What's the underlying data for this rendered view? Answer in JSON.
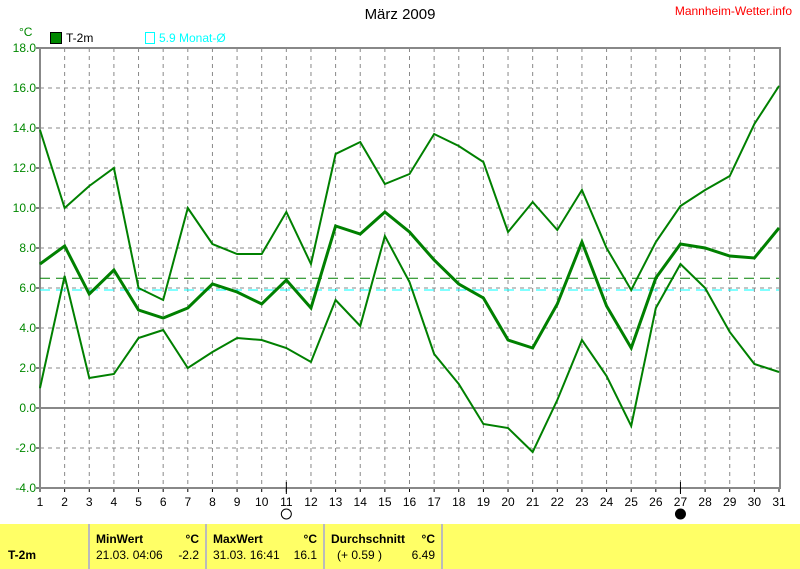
{
  "title": "März 2009",
  "brand": "Mannheim-Wetter.info",
  "unit": "°C",
  "legend": {
    "series": "T-2m",
    "reference": "5.9 Monat-Ø"
  },
  "colors": {
    "series": "#008000",
    "reference": "#00ffff",
    "average": "#008000",
    "grid": "#808080",
    "table": "#ffff66"
  },
  "moon_phases": [
    {
      "day": 11,
      "phase": "full-moon-icon"
    },
    {
      "day": 27,
      "phase": "new-moon-icon"
    }
  ],
  "chart_data": {
    "type": "line",
    "title": "März 2009",
    "ylabel": "°C",
    "ylim": [
      -4,
      18
    ],
    "yticks": [
      "-4.0",
      "-2.0",
      "0.0",
      "2.0",
      "4.0",
      "6.0",
      "8.0",
      "10.0",
      "12.0",
      "14.0",
      "16.0",
      "18.0"
    ],
    "x": [
      1,
      2,
      3,
      4,
      5,
      6,
      7,
      8,
      9,
      10,
      11,
      12,
      13,
      14,
      15,
      16,
      17,
      18,
      19,
      20,
      21,
      22,
      23,
      24,
      25,
      26,
      27,
      28,
      29,
      30,
      31
    ],
    "grid": true,
    "series": [
      {
        "role": "max",
        "values": [
          13.9,
          10.0,
          11.1,
          12.0,
          6.0,
          5.4,
          10.0,
          8.2,
          7.7,
          7.7,
          9.8,
          7.2,
          12.7,
          13.3,
          11.2,
          11.7,
          13.7,
          13.1,
          12.3,
          8.8,
          10.3,
          8.9,
          10.9,
          8.0,
          5.9,
          8.3,
          10.1,
          10.9,
          11.6,
          14.2,
          16.1
        ]
      },
      {
        "role": "mean",
        "values": [
          7.2,
          8.1,
          5.7,
          6.9,
          4.9,
          4.5,
          5.0,
          6.2,
          5.8,
          5.2,
          6.4,
          5.0,
          9.1,
          8.7,
          9.8,
          8.8,
          7.4,
          6.2,
          5.5,
          3.4,
          3.0,
          5.2,
          8.3,
          5.1,
          3.0,
          6.5,
          8.2,
          8.0,
          7.6,
          7.5,
          9.0
        ]
      },
      {
        "role": "min",
        "values": [
          1.0,
          6.6,
          1.5,
          1.7,
          3.5,
          3.9,
          2.0,
          2.8,
          3.5,
          3.4,
          3.0,
          2.3,
          5.4,
          4.1,
          8.6,
          6.3,
          2.7,
          1.2,
          -0.8,
          -1.0,
          -2.2,
          0.4,
          3.4,
          1.6,
          -0.9,
          5.0,
          7.2,
          6.0,
          3.8,
          2.2,
          1.8
        ]
      }
    ],
    "hlines": [
      {
        "value": 6.49,
        "style": "dashed",
        "color": "#008000"
      },
      {
        "value": 5.9,
        "style": "dashed",
        "color": "#00ffff"
      }
    ]
  },
  "table": {
    "row_label": "T-2m",
    "min": {
      "header": "MinWert",
      "unit": "°C",
      "time": "21.03.  04:06",
      "value": "-2.2"
    },
    "max": {
      "header": "MaxWert",
      "unit": "°C",
      "time": "31.03.  16:41",
      "value": "16.1"
    },
    "avg": {
      "header": "Durchschnitt",
      "unit": "°C",
      "diff": "(+ 0.59 )",
      "value": "6.49"
    }
  }
}
